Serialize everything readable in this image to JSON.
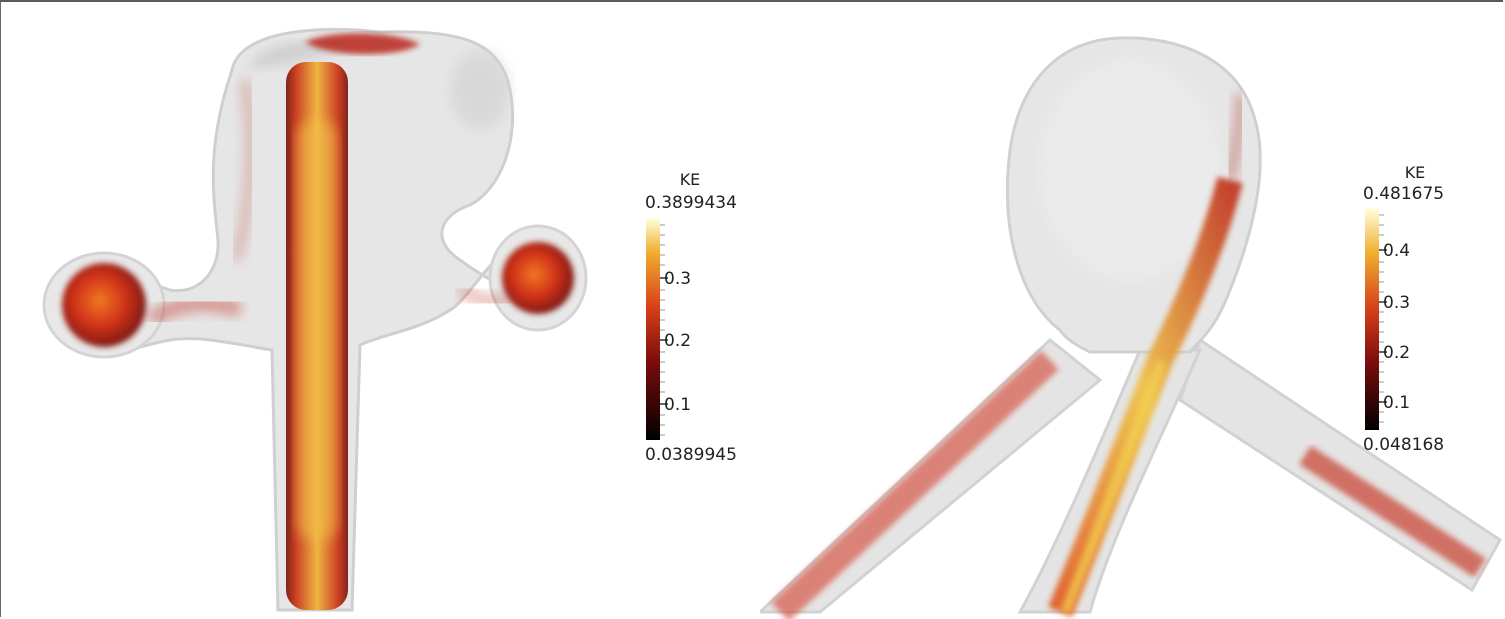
{
  "left_view": {
    "colorbar": {
      "title": "KE",
      "max_label": "0.3899434",
      "min_label": "0.0389945",
      "ticks": [
        "0.3",
        "0.2",
        "0.1"
      ]
    }
  },
  "right_view": {
    "colorbar": {
      "title": "KE",
      "max_label": "0.481675",
      "min_label": "0.048168",
      "ticks": [
        "0.4",
        "0.3",
        "0.2",
        "0.1"
      ]
    }
  }
}
